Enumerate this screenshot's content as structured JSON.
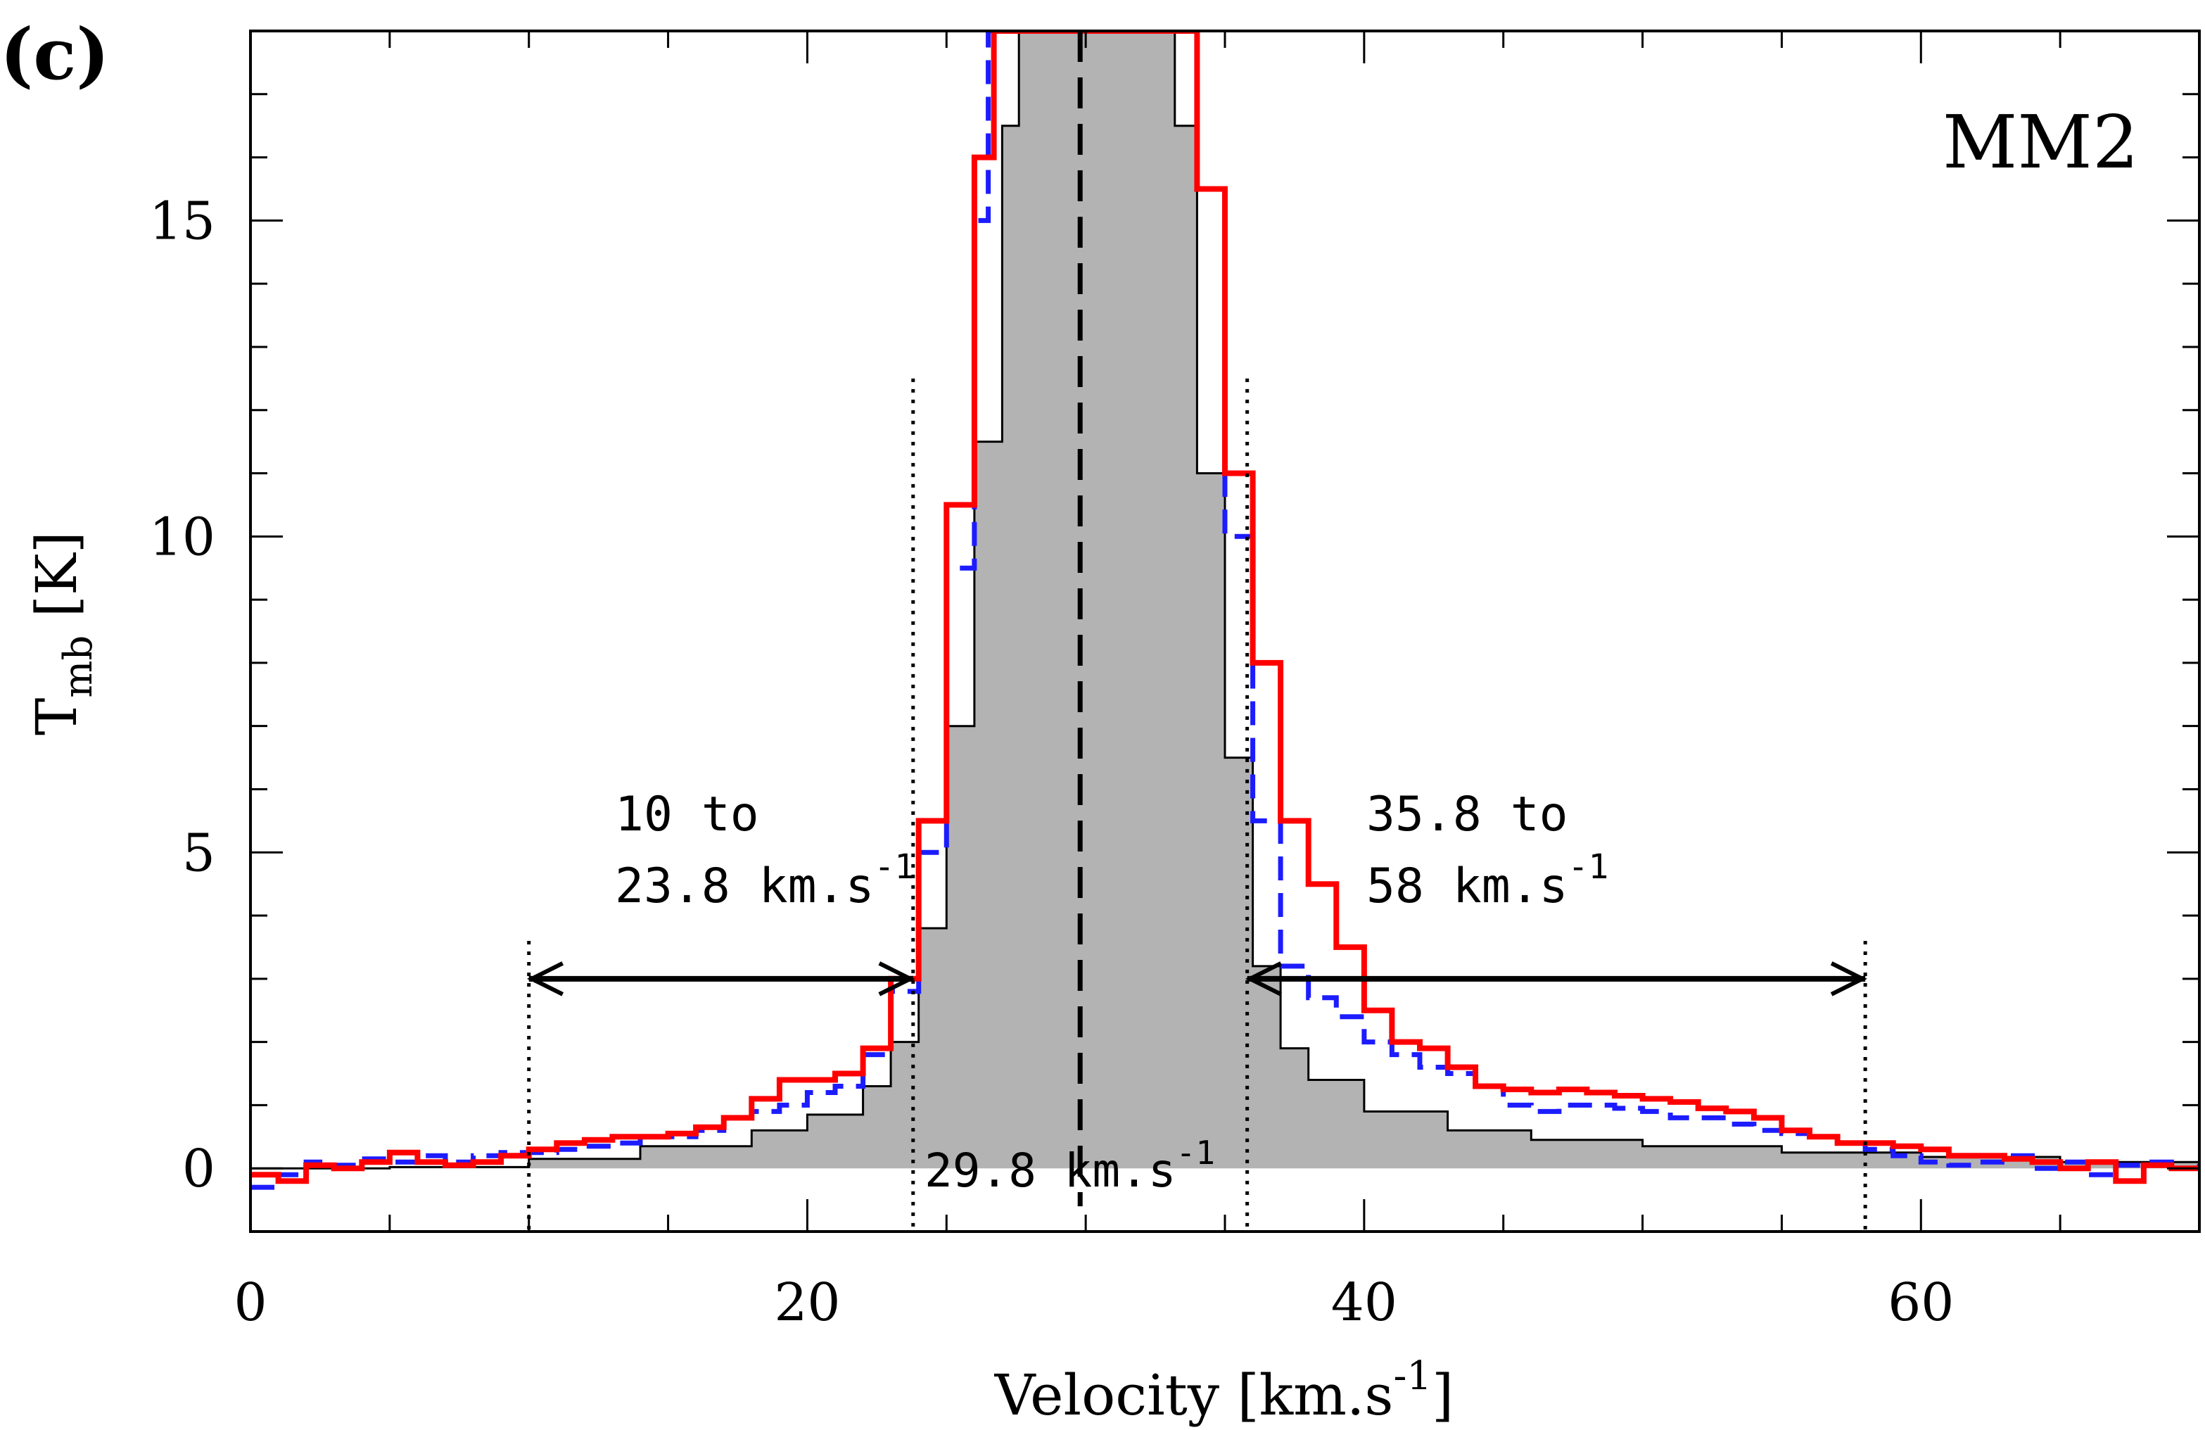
{
  "panel_label": "(c)",
  "source_label": "MM2",
  "chart_data": {
    "type": "line",
    "title": "",
    "xlabel": "Velocity [km.s",
    "xlabel_sup": "-1",
    "xlabel_end": "]",
    "ylabel_main": "T",
    "ylabel_sub": "mb",
    "ylabel_end": " [K]",
    "xlim": [
      0,
      70
    ],
    "ylim": [
      -1,
      18
    ],
    "x_ticks": [
      0,
      20,
      40,
      60
    ],
    "y_ticks": [
      0,
      5,
      10,
      15
    ],
    "systemic_velocity": 29.8,
    "vlines_dotted": [
      10,
      23.8,
      35.8,
      58
    ],
    "arrows": [
      {
        "from": 10,
        "to": 23.8,
        "y": 3.0
      },
      {
        "from": 35.8,
        "to": 58,
        "y": 3.0
      }
    ],
    "annotations": {
      "blue_range_line1": "10 to",
      "blue_range_line2": "23.8 km.s",
      "red_range_line1": "35.8 to",
      "red_range_line2": "58 km.s",
      "center": "29.8 km.s",
      "unit_sup": "-1"
    },
    "series": [
      {
        "name": "grey filled (core)",
        "color": "#b3b3b3",
        "x": [
          0,
          5,
          10,
          14,
          18,
          20,
          22,
          23,
          24,
          25,
          26,
          27,
          27.6,
          32.8,
          33.2,
          34,
          35,
          36,
          37,
          38,
          40,
          43,
          46,
          50,
          55,
          60,
          65,
          70
        ],
        "y": [
          0,
          0.02,
          0.15,
          0.35,
          0.6,
          0.85,
          1.3,
          2.0,
          3.8,
          7.0,
          11.5,
          16.5,
          18,
          18,
          16.5,
          11.0,
          6.5,
          3.2,
          1.9,
          1.4,
          0.9,
          0.6,
          0.45,
          0.35,
          0.25,
          0.18,
          0.1,
          0.05
        ]
      },
      {
        "name": "blue dashed",
        "color": "#1c1cff",
        "x": [
          0,
          1,
          2,
          3,
          4,
          5,
          6,
          7,
          8,
          9,
          10,
          11,
          12,
          13,
          14,
          15,
          16,
          17,
          18,
          19,
          20,
          21,
          22,
          23,
          24,
          25,
          26,
          26.5,
          33.6,
          34,
          35,
          36,
          37,
          38,
          39,
          40,
          41,
          42,
          43,
          44,
          45,
          46,
          47,
          48,
          49,
          50,
          51,
          52,
          53,
          54,
          55,
          56,
          57,
          58,
          59,
          60,
          61,
          62,
          63,
          64,
          65,
          66,
          67,
          68,
          69,
          70
        ],
        "y": [
          -0.3,
          -0.1,
          0.1,
          0.05,
          0.15,
          0.1,
          0.2,
          0.1,
          0.2,
          0.25,
          0.25,
          0.3,
          0.35,
          0.4,
          0.5,
          0.5,
          0.6,
          0.8,
          0.9,
          1.0,
          1.2,
          1.3,
          1.8,
          2.8,
          5.0,
          9.5,
          15.0,
          18,
          18,
          15.5,
          10.0,
          5.5,
          3.2,
          2.7,
          2.4,
          2.0,
          1.8,
          1.6,
          1.5,
          1.3,
          1.0,
          0.9,
          1.0,
          1.0,
          0.95,
          0.9,
          0.8,
          0.8,
          0.7,
          0.6,
          0.55,
          0.5,
          0.4,
          0.3,
          0.2,
          0.1,
          0.05,
          0.1,
          0.2,
          0.0,
          0.1,
          -0.1,
          0.05,
          0.1,
          0.0,
          0.1
        ]
      },
      {
        "name": "red solid",
        "color": "#ff0000",
        "x": [
          0,
          1,
          2,
          3,
          4,
          5,
          6,
          7,
          8,
          9,
          10,
          11,
          12,
          13,
          14,
          15,
          16,
          17,
          18,
          19,
          20,
          21,
          22,
          23,
          24,
          25,
          26,
          26.7,
          33.3,
          34,
          35,
          36,
          37,
          38,
          39,
          40,
          41,
          42,
          43,
          44,
          45,
          46,
          47,
          48,
          49,
          50,
          51,
          52,
          53,
          54,
          55,
          56,
          57,
          58,
          59,
          60,
          61,
          62,
          63,
          64,
          65,
          66,
          67,
          68,
          69,
          70
        ],
        "y": [
          -0.1,
          -0.2,
          0.05,
          0.0,
          0.1,
          0.25,
          0.1,
          0.05,
          0.1,
          0.2,
          0.3,
          0.4,
          0.45,
          0.5,
          0.5,
          0.55,
          0.65,
          0.8,
          1.1,
          1.4,
          1.4,
          1.5,
          1.9,
          3.0,
          5.5,
          10.5,
          16.0,
          18,
          18,
          15.5,
          11.0,
          8.0,
          5.5,
          4.5,
          3.5,
          2.5,
          2.0,
          1.9,
          1.6,
          1.3,
          1.25,
          1.2,
          1.25,
          1.2,
          1.15,
          1.1,
          1.05,
          0.95,
          0.9,
          0.8,
          0.6,
          0.5,
          0.4,
          0.4,
          0.35,
          0.3,
          0.2,
          0.2,
          0.15,
          0.1,
          0.0,
          0.1,
          -0.2,
          0.05,
          0.0,
          0.05
        ]
      }
    ]
  }
}
